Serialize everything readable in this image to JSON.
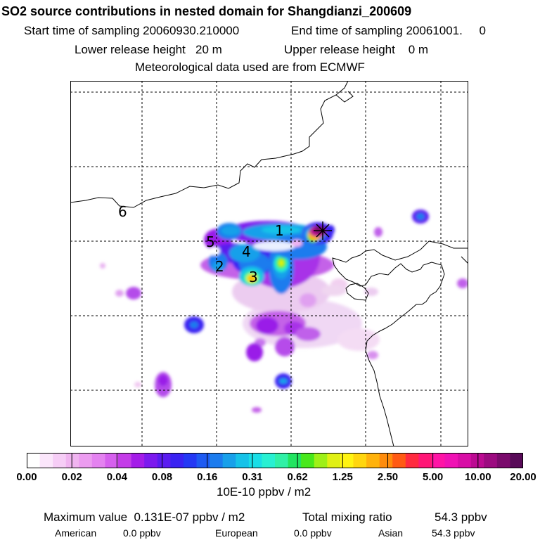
{
  "header": {
    "title": "SO2 source contributions in nested domain for Shangdianzi_200609",
    "start_label": "Start time of sampling 20060930.210000",
    "end_label": "End time of sampling 20061001.     0",
    "lower_label": "Lower release height   20 m",
    "upper_label": "Upper release height    0 m",
    "met_label": "Meteorological data used are from ECMWF"
  },
  "map": {
    "region_labels": [
      "1",
      "2",
      "3",
      "4",
      "5",
      "6"
    ],
    "receptor": "Shangdianzi"
  },
  "colorbar": {
    "colors": [
      "#ffffff",
      "#fbe6fb",
      "#f6cdf6",
      "#f0b4f0",
      "#ec9cf0",
      "#e482f0",
      "#d660ee",
      "#c43ce8",
      "#a41ce8",
      "#7c1aee",
      "#5a1cf0",
      "#3a22f2",
      "#2438f4",
      "#1e5af2",
      "#1c7cee",
      "#18a0ea",
      "#16c2e8",
      "#1adee6",
      "#28f0d2",
      "#30f0a6",
      "#22e460",
      "#48e81c",
      "#9ef018",
      "#e0f014",
      "#fff412",
      "#ffd60e",
      "#ffb20c",
      "#ff8c0c",
      "#ff5a14",
      "#ff2a40",
      "#ff1676",
      "#ff14a6",
      "#f012b4",
      "#d80ea6",
      "#bc0a92",
      "#9c0a80",
      "#7a0a6c",
      "#580a58"
    ],
    "tick_labels": [
      "0.00",
      "0.02",
      "0.04",
      "0.08",
      "0.16",
      "0.31",
      "0.62",
      "1.25",
      "2.50",
      "5.00",
      "10.00",
      "20.00"
    ],
    "unit": "10E-10 ppbv / m2"
  },
  "footer": {
    "max_label": "Maximum value  0.131E-07 ppbv / m2",
    "total_label": "Total mixing ratio",
    "total_value": "54.3 ppbv",
    "american_label": "American",
    "american_value": "0.0 ppbv",
    "european_label": "European",
    "european_value": "0.0 ppbv",
    "asian_label": "Asian",
    "asian_value": "54.3 ppbv"
  }
}
